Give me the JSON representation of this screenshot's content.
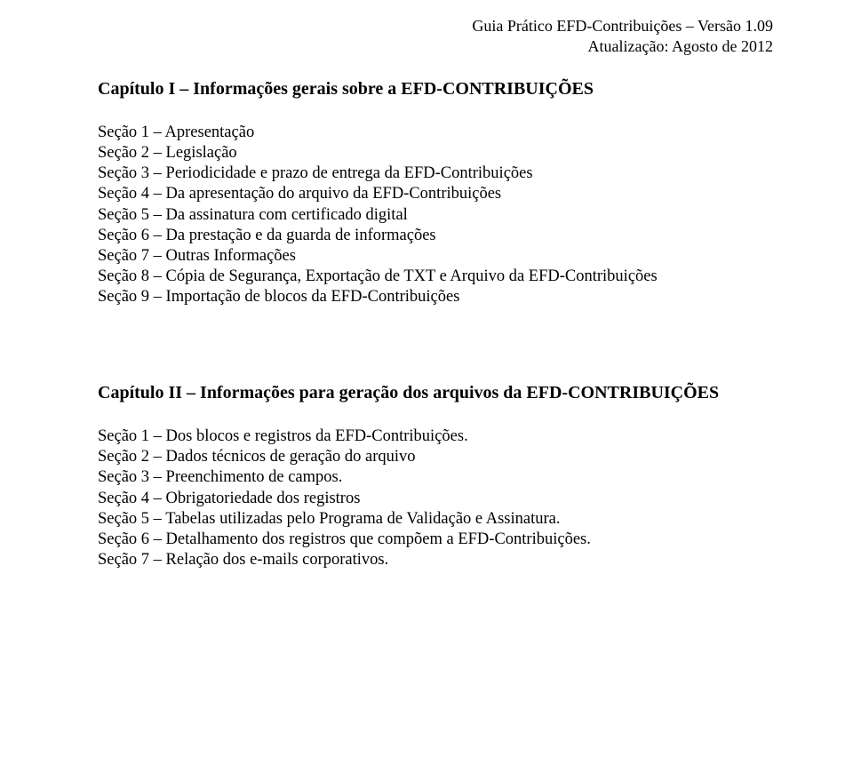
{
  "header": {
    "line1": "Guia Prático EFD-Contribuições – Versão 1.09",
    "line2": "Atualização: Agosto de 2012"
  },
  "chapter1": {
    "title": "Capítulo I – Informações gerais sobre a EFD-CONTRIBUIÇÕES",
    "sections": [
      "Seção 1 – Apresentação",
      "Seção 2 – Legislação",
      "Seção 3 – Periodicidade e prazo de entrega da EFD-Contribuições",
      "Seção 4 – Da apresentação do arquivo da EFD-Contribuições",
      "Seção 5 – Da assinatura com certificado digital",
      "Seção 6 – Da prestação e da guarda de informações",
      "Seção 7 – Outras Informações",
      "Seção 8 – Cópia de Segurança, Exportação de TXT e Arquivo da EFD-Contribuições",
      "Seção 9 – Importação de blocos da EFD-Contribuições"
    ]
  },
  "chapter2": {
    "title": "Capítulo II – Informações para geração dos arquivos da EFD-CONTRIBUIÇÕES",
    "sections": [
      "Seção 1 – Dos blocos e registros da EFD-Contribuições.",
      "Seção 2 – Dados técnicos de geração do arquivo",
      "Seção 3 – Preenchimento de campos.",
      "Seção 4 – Obrigatoriedade dos registros",
      "Seção 5 – Tabelas utilizadas pelo Programa de Validação e Assinatura.",
      "Seção 6 – Detalhamento dos registros que compõem a EFD-Contribuições.",
      "Seção 7 – Relação dos e-mails corporativos."
    ]
  }
}
